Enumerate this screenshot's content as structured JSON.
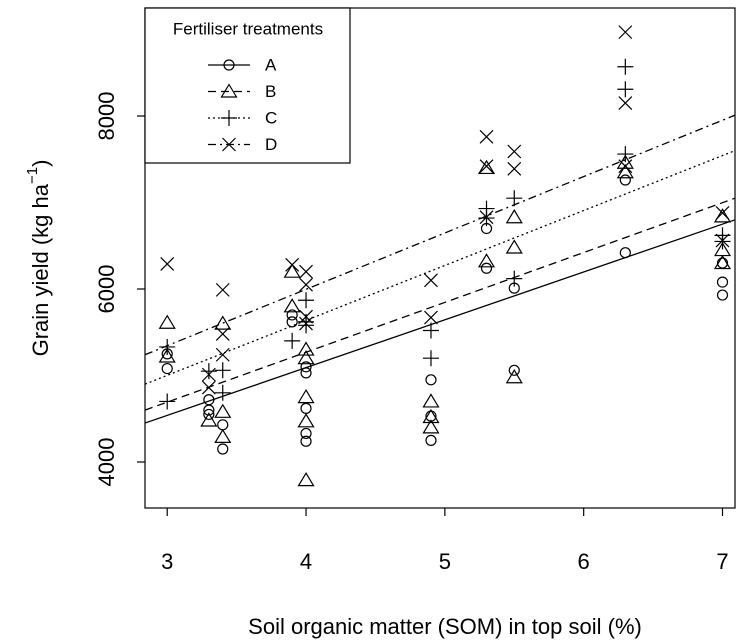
{
  "chart_data": {
    "type": "scatter",
    "x_label": "Soil organic matter (SOM) in top soil (%)",
    "y_label": {
      "text": "Grain yield (kg ha",
      "sup": "−1",
      "end": ")"
    },
    "legend_title": "Fertiliser treatments",
    "legend_position": "top-left",
    "xlim": [
      2.84,
      7.09
    ],
    "ylim": [
      3468,
      9249
    ],
    "xticks": [
      3,
      4,
      5,
      6,
      7
    ],
    "yticks": [
      4000,
      6000,
      8000
    ],
    "fit_x": [
      2.84,
      7.09
    ],
    "series": [
      {
        "name": "A",
        "marker": "circle",
        "dash": "solid",
        "color": "#000000",
        "fit_values": [
          4450,
          6800
        ],
        "x": [
          3,
          3,
          3.3,
          3.3,
          3.3,
          3.4,
          3.4,
          3.9,
          3.9,
          4,
          4,
          4,
          4,
          4,
          4.9,
          4.9,
          4.9,
          5.3,
          5.3,
          5.5,
          5.5,
          6.3,
          6.3,
          7,
          7,
          7
        ],
        "values": [
          5250,
          5080,
          4720,
          4600,
          4550,
          4430,
          4150,
          5620,
          5700,
          5100,
          5030,
          4620,
          4330,
          4240,
          4950,
          4530,
          4250,
          6700,
          6240,
          6010,
          5060,
          7260,
          6420,
          6080,
          5930,
          6300
        ]
      },
      {
        "name": "B",
        "marker": "triangle",
        "dash": "dashed",
        "color": "#000000",
        "fit_values": [
          4600,
          7050
        ],
        "x": [
          3,
          3,
          3.3,
          3.4,
          3.4,
          3.4,
          3.9,
          3.9,
          4,
          4,
          4,
          4,
          4,
          4.9,
          4.9,
          4.9,
          5.3,
          5.3,
          5.5,
          5.5,
          5.5,
          6.3,
          6.3,
          7,
          7,
          7
        ],
        "values": [
          5610,
          5220,
          4480,
          5600,
          4580,
          4290,
          6200,
          5800,
          5300,
          5200,
          4750,
          4470,
          3790,
          4700,
          4520,
          4400,
          7400,
          6320,
          6480,
          6830,
          4980,
          7460,
          7350,
          6840,
          6450,
          6300
        ]
      },
      {
        "name": "C",
        "marker": "plus",
        "dash": "dotted",
        "color": "#000000",
        "fit_values": [
          4900,
          7600
        ],
        "x": [
          3,
          3,
          3.3,
          3.4,
          3.4,
          3.9,
          4,
          4,
          4,
          4.9,
          4.9,
          5.3,
          5.3,
          5.5,
          5.5,
          6.3,
          6.3,
          6.3,
          7,
          7
        ],
        "values": [
          5330,
          4700,
          5050,
          5060,
          4800,
          5400,
          5870,
          5580,
          5620,
          5200,
          5520,
          6930,
          6820,
          7050,
          6120,
          8570,
          8310,
          7560,
          6620,
          6550
        ]
      },
      {
        "name": "D",
        "marker": "cross",
        "dash": "dashdot",
        "color": "#000000",
        "fit_values": [
          5240,
          8010
        ],
        "x": [
          3,
          3.3,
          3.3,
          3.4,
          3.4,
          3.4,
          3.9,
          4,
          4,
          4,
          4,
          4.9,
          4.9,
          5.3,
          5.3,
          5.3,
          5.5,
          5.5,
          6.3,
          6.3,
          6.3,
          7,
          7
        ],
        "values": [
          6290,
          5010,
          4860,
          5990,
          5480,
          5240,
          6280,
          6200,
          6050,
          5600,
          5680,
          5670,
          6100,
          7760,
          7420,
          6830,
          7590,
          7390,
          8970,
          8150,
          7420,
          6880,
          6560
        ]
      }
    ]
  }
}
